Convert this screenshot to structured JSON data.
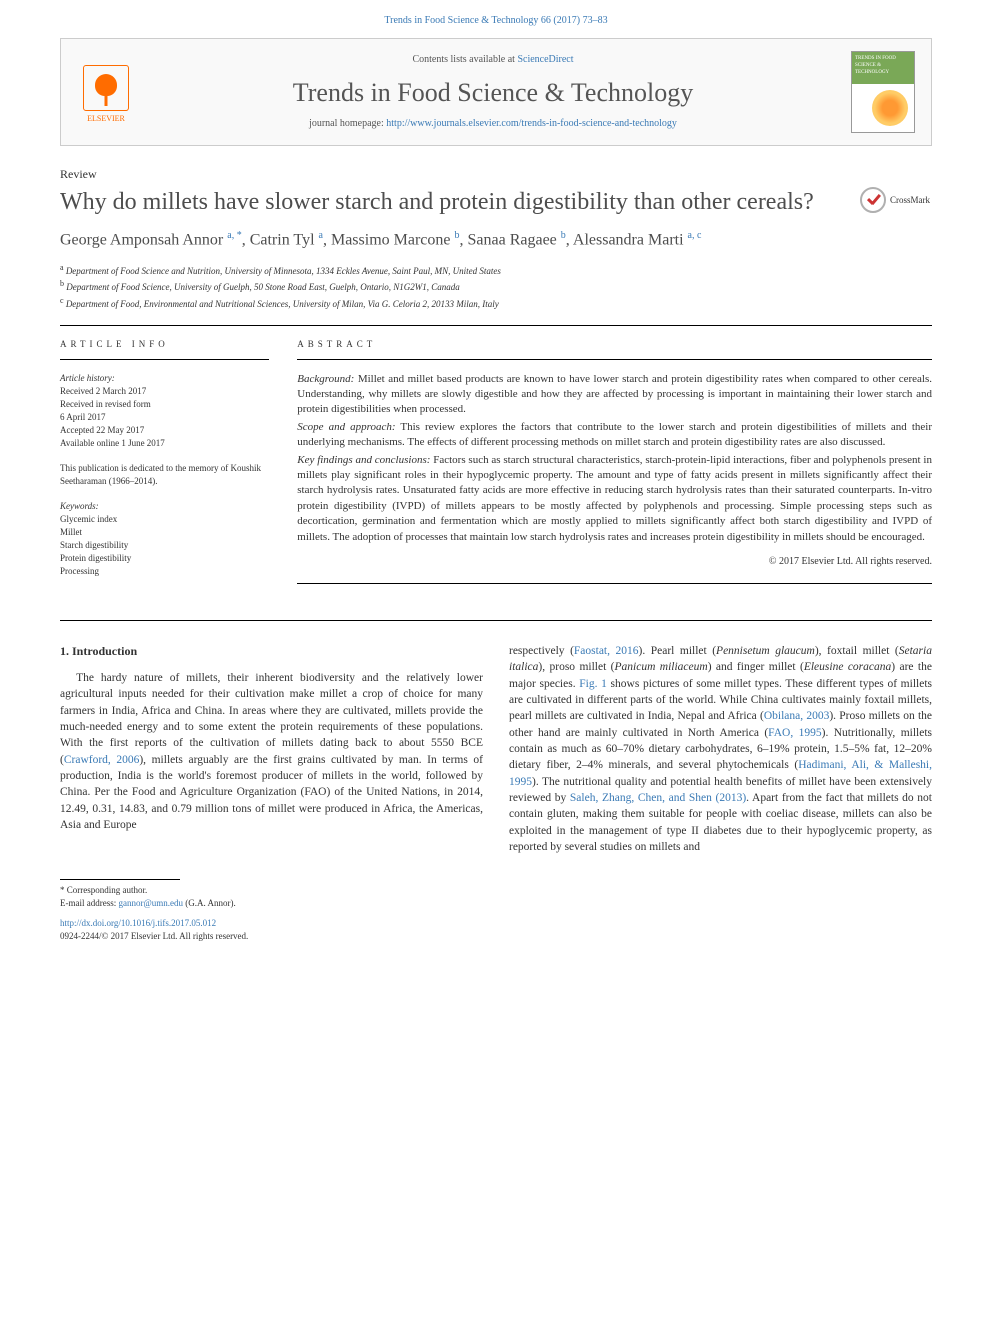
{
  "journal": {
    "header_line": "Trends in Food Science & Technology 66 (2017) 73–83",
    "contents_prefix": "Contents lists available at ",
    "contents_link": "ScienceDirect",
    "title": "Trends in Food Science & Technology",
    "homepage_prefix": "journal homepage: ",
    "homepage_url": "http://www.journals.elsevier.com/trends-in-food-science-and-technology",
    "elsevier_label": "ELSEVIER",
    "cover_label": "TRENDS IN FOOD SCIENCE & TECHNOLOGY"
  },
  "article": {
    "type": "Review",
    "title": "Why do millets have slower starch and protein digestibility than other cereals?",
    "crossmark": "CrossMark",
    "authors_html": "George Amponsah Annor <sup>a, *</sup>, Catrin Tyl <sup>a</sup>, Massimo Marcone <sup>b</sup>, Sanaa Ragaee <sup>b</sup>, Alessandra Marti <sup>a, c</sup>",
    "affiliations": [
      {
        "sup": "a",
        "text": "Department of Food Science and Nutrition, University of Minnesota, 1334 Eckles Avenue, Saint Paul, MN, United States"
      },
      {
        "sup": "b",
        "text": "Department of Food Science, University of Guelph, 50 Stone Road East, Guelph, Ontario, N1G2W1, Canada"
      },
      {
        "sup": "c",
        "text": "Department of Food, Environmental and Nutritional Sciences, University of Milan, Via G. Celoria 2, 20133 Milan, Italy"
      }
    ]
  },
  "info": {
    "heading": "ARTICLE INFO",
    "history_label": "Article history:",
    "history": [
      "Received 2 March 2017",
      "Received in revised form",
      "6 April 2017",
      "Accepted 22 May 2017",
      "Available online 1 June 2017"
    ],
    "dedication": "This publication is dedicated to the memory of Koushik Seetharaman (1966–2014).",
    "keywords_label": "Keywords:",
    "keywords": [
      "Glycemic index",
      "Millet",
      "Starch digestibility",
      "Protein digestibility",
      "Processing"
    ]
  },
  "abstract": {
    "heading": "ABSTRACT",
    "paras": [
      {
        "lead": "Background:",
        "text": " Millet and millet based products are known to have lower starch and protein digestibility rates when compared to other cereals. Understanding, why millets are slowly digestible and how they are affected by processing is important in maintaining their lower starch and protein digestibilities when processed."
      },
      {
        "lead": "Scope and approach:",
        "text": " This review explores the factors that contribute to the lower starch and protein digestibilities of millets and their underlying mechanisms. The effects of different processing methods on millet starch and protein digestibility rates are also discussed."
      },
      {
        "lead": "Key findings and conclusions:",
        "text": " Factors such as starch structural characteristics, starch-protein-lipid interactions, fiber and polyphenols present in millets play significant roles in their hypoglycemic property. The amount and type of fatty acids present in millets significantly affect their starch hydrolysis rates. Unsaturated fatty acids are more effective in reducing starch hydrolysis rates than their saturated counterparts. In-vitro protein digestibility (IVPD) of millets appears to be mostly affected by polyphenols and processing. Simple processing steps such as decortication, germination and fermentation which are mostly applied to millets significantly affect both starch digestibility and IVPD of millets. The adoption of processes that maintain low starch hydrolysis rates and increases protein digestibility in millets should be encouraged."
      }
    ],
    "copyright": "© 2017 Elsevier Ltd. All rights reserved."
  },
  "body": {
    "section_title": "1. Introduction",
    "col1": "The hardy nature of millets, their inherent biodiversity and the relatively lower agricultural inputs needed for their cultivation make millet a crop of choice for many farmers in India, Africa and China. In areas where they are cultivated, millets provide the much-needed energy and to some extent the protein requirements of these populations. With the first reports of the cultivation of millets dating back to about 5550 BCE (<a>Crawford, 2006</a>), millets arguably are the first grains cultivated by man. In terms of production, India is the world's foremost producer of millets in the world, followed by China. Per the Food and Agriculture Organization (FAO) of the United Nations, in 2014, 12.49, 0.31, 14.83, and 0.79 million tons of millet were produced in Africa, the Americas, Asia and Europe",
    "col2": "respectively (<a>Faostat, 2016</a>). Pearl millet (<span class=\"ital\">Pennisetum glaucum</span>), foxtail millet (<span class=\"ital\">Setaria italica</span>), proso millet (<span class=\"ital\">Panicum miliaceum</span>) and finger millet (<span class=\"ital\">Eleusine coracana</span>) are the major species. <a>Fig. 1</a> shows pictures of some millet types. These different types of millets are cultivated in different parts of the world. While China cultivates mainly foxtail millets, pearl millets are cultivated in India, Nepal and Africa (<a>Obilana, 2003</a>). Proso millets on the other hand are mainly cultivated in North America (<a>FAO, 1995</a>). Nutritionally, millets contain as much as 60–70% dietary carbohydrates, 6–19% protein, 1.5–5% fat, 12–20% dietary fiber, 2–4% minerals, and several phytochemicals (<a>Hadimani, Ali, & Malleshi, 1995</a>). The nutritional quality and potential health benefits of millet have been extensively reviewed by <a>Saleh, Zhang, Chen, and Shen (2013)</a>. Apart from the fact that millets do not contain gluten, making them suitable for people with coeliac disease, millets can also be exploited in the management of type II diabetes due to their hypoglycemic property, as reported by several studies on millets and"
  },
  "footer": {
    "corr": "* Corresponding author.",
    "email_label": "E-mail address: ",
    "email": "gannor@umn.edu",
    "email_tail": " (G.A. Annor).",
    "doi": "http://dx.doi.org/10.1016/j.tifs.2017.05.012",
    "issn": "0924-2244/© 2017 Elsevier Ltd. All rights reserved."
  },
  "colors": {
    "link": "#3a7ab5",
    "elsevier": "#ff6c00",
    "text": "#333333",
    "title_gray": "#4d4d4d"
  }
}
